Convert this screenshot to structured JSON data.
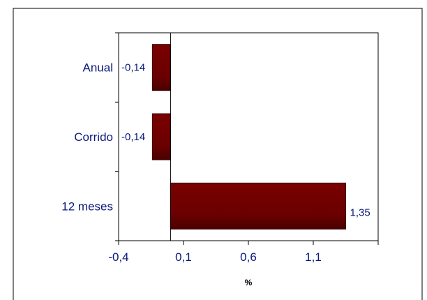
{
  "chart_data": {
    "type": "bar",
    "orientation": "horizontal",
    "categories": [
      "Anual",
      "Corrido",
      "12 meses"
    ],
    "values": [
      -0.14,
      -0.14,
      1.35
    ],
    "value_labels": [
      "-0,14",
      "-0,14",
      "1,35"
    ],
    "xlabel": "%",
    "xlim": [
      -0.4,
      1.6
    ],
    "xticks": [
      -0.4,
      0.1,
      0.6,
      1.1
    ],
    "xtick_labels": [
      "-0,4",
      "0,1",
      "0,6",
      "1,1"
    ],
    "grid": false,
    "legend": "none",
    "bar_color": "#7a0000",
    "bar_color_dark": "#4a0000",
    "text_color": "#0b1a7a"
  }
}
